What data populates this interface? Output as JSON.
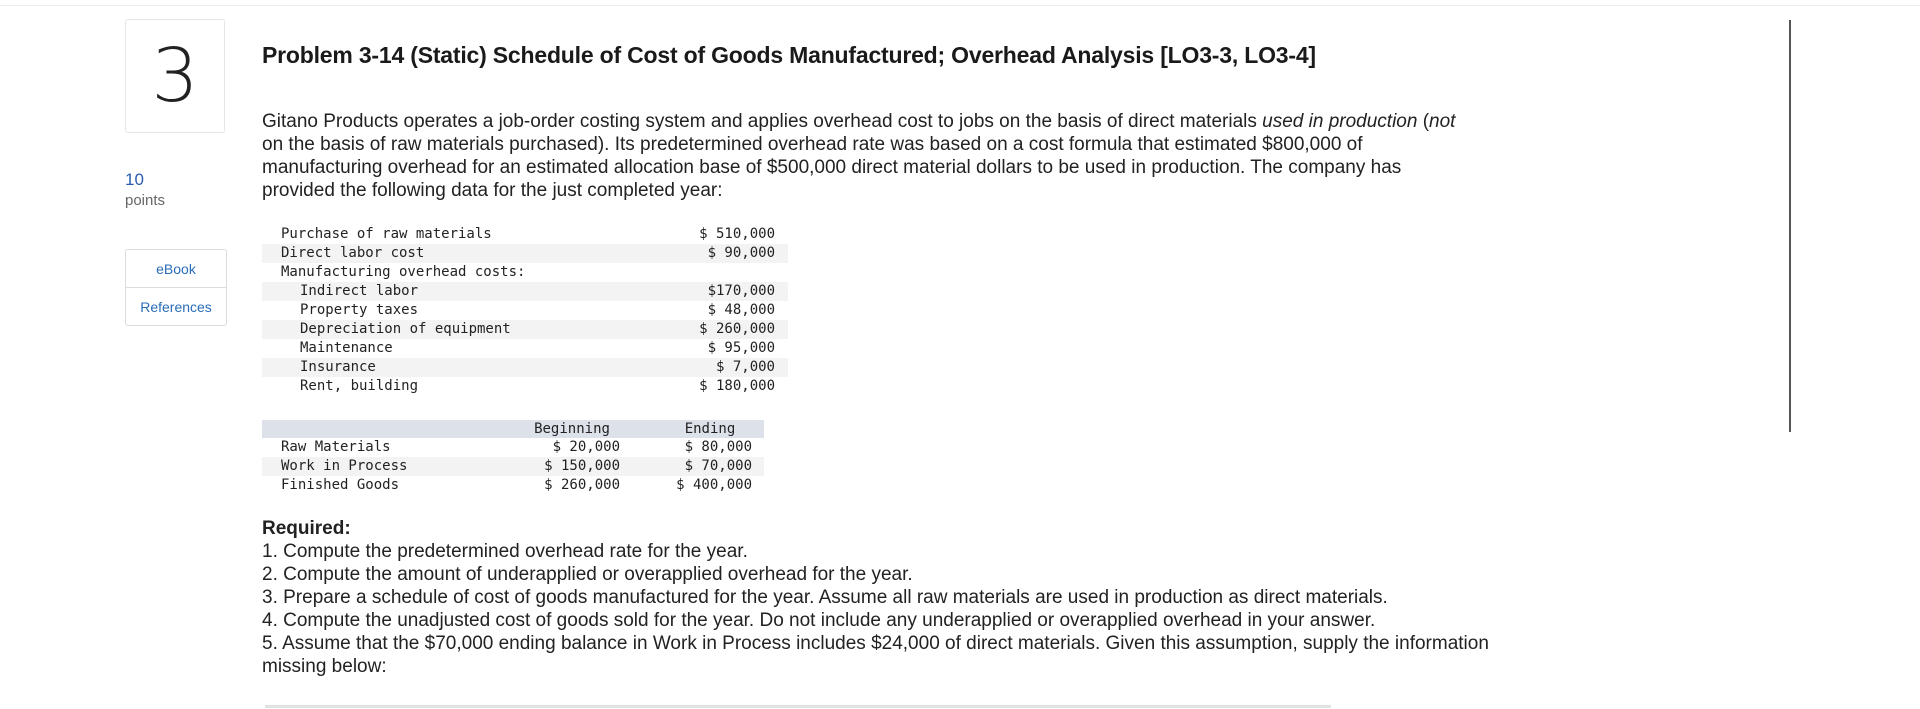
{
  "question": {
    "number": "3",
    "points_value": "10",
    "points_label": "points",
    "side_buttons": [
      "eBook",
      "References"
    ]
  },
  "problem": {
    "title": "Problem 3-14 (Static) Schedule of Cost of Goods Manufactured; Overhead Analysis [LO3-3, LO3-4]",
    "intro_1": "Gitano Products operates a job-order costing system and applies overhead cost to jobs on the basis of direct materials ",
    "intro_em_1": "used in production",
    "intro_2": " (",
    "intro_em_2": "not",
    "intro_3": " on the basis of raw materials purchased). Its predetermined overhead rate was based on a cost formula that estimated $800,000 of manufacturing overhead for an estimated allocation base of $500,000 direct material dollars to be used in production. The company has provided the following data for the just completed year:"
  },
  "data_table": {
    "rows": [
      {
        "label": "Purchase of raw materials",
        "value": "$ 510,000"
      },
      {
        "label": "Direct labor cost",
        "value": "$ 90,000"
      },
      {
        "label": "Manufacturing overhead costs:",
        "value": ""
      },
      {
        "label": "Indirect labor",
        "value": "$170,000"
      },
      {
        "label": "Property taxes",
        "value": "$ 48,000"
      },
      {
        "label": "Depreciation of equipment",
        "value": "$ 260,000"
      },
      {
        "label": "Maintenance",
        "value": "$ 95,000"
      },
      {
        "label": "Insurance",
        "value": "$ 7,000"
      },
      {
        "label": "Rent, building",
        "value": "$ 180,000"
      }
    ]
  },
  "inventory_table": {
    "headers": [
      "",
      "Beginning",
      "Ending"
    ],
    "rows": [
      {
        "label": "Raw Materials",
        "beginning": "$ 20,000",
        "ending": "$ 80,000"
      },
      {
        "label": "Work in Process",
        "beginning": "$ 150,000",
        "ending": "$ 70,000"
      },
      {
        "label": "Finished Goods",
        "beginning": "$ 260,000",
        "ending": "$ 400,000"
      }
    ]
  },
  "required": {
    "heading": "Required:",
    "items": [
      "1. Compute the predetermined overhead rate for the year.",
      "2. Compute the amount of underapplied or overapplied overhead for the year.",
      "3. Prepare a schedule of cost of goods manufactured for the year. Assume all raw materials are used in production as direct materials.",
      "4. Compute the unadjusted cost of goods sold for the year. Do not include any underapplied or overapplied overhead in your answer.",
      "5. Assume that the $70,000 ending balance in Work in Process includes $24,000 of direct materials. Given this assumption, supply the information missing below:"
    ]
  }
}
